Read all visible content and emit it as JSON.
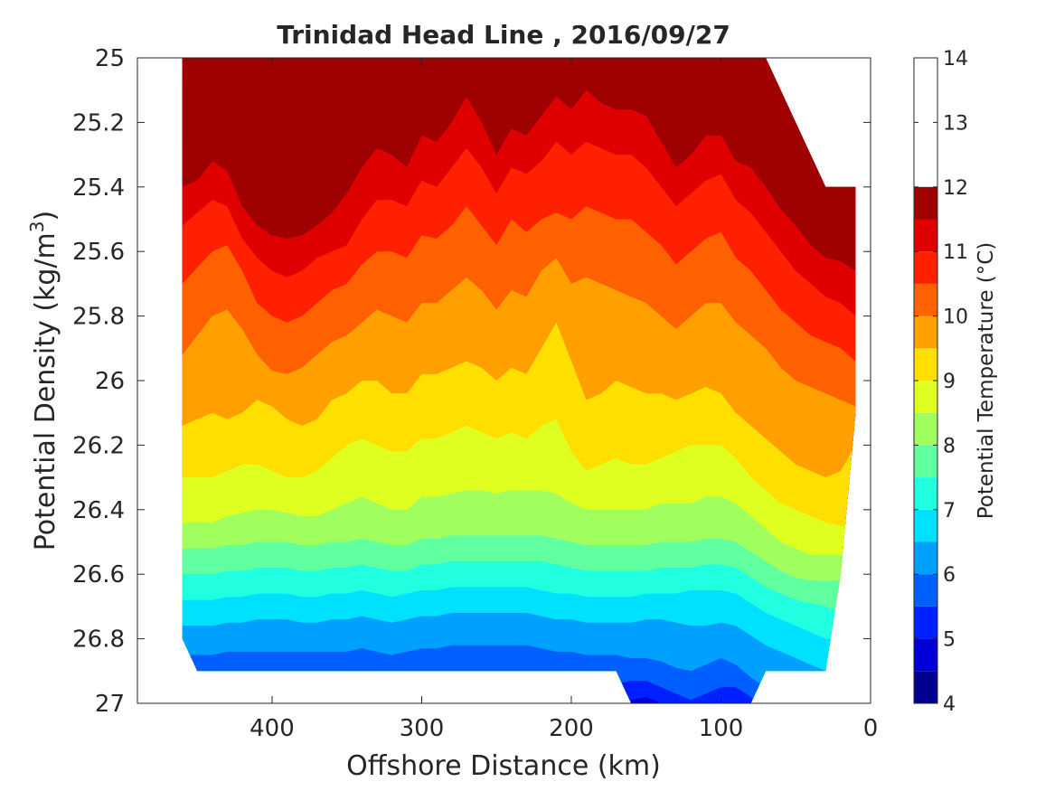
{
  "chart_data": {
    "type": "heatmap",
    "subtype": "filled-contour",
    "title": "Trinidad Head Line , 2016/09/27",
    "xlabel": "Offshore Distance (km)",
    "ylabel_main": "Potential Density (kg/m",
    "ylabel_sup": "3",
    "ylabel_close": ")",
    "colorbar_label": "Potential Temperature (°C)",
    "x_reversed": true,
    "y_reversed": true,
    "xlim": [
      0,
      490
    ],
    "ylim": [
      25,
      27
    ],
    "xticks": [
      400,
      300,
      200,
      100,
      0
    ],
    "xtick_labels": [
      "400",
      "300",
      "200",
      "100",
      "0"
    ],
    "yticks": [
      25,
      25.2,
      25.4,
      25.6,
      25.8,
      26,
      26.2,
      26.4,
      26.6,
      26.8,
      27
    ],
    "ytick_labels": [
      "25",
      "25.2",
      "25.4",
      "25.6",
      "25.8",
      "26",
      "26.2",
      "26.4",
      "26.6",
      "26.8",
      "27"
    ],
    "clim": [
      4,
      14
    ],
    "colorbar_ticks": [
      4,
      5,
      6,
      7,
      8,
      9,
      10,
      11,
      12,
      13,
      14
    ],
    "colorbar_tick_labels": [
      "4",
      "5",
      "6",
      "7",
      "8",
      "9",
      "10",
      "11",
      "12",
      "13",
      "14"
    ],
    "colormap": [
      "#00008f",
      "#0000d6",
      "#0020ff",
      "#0060ff",
      "#00a0ff",
      "#00e0ff",
      "#20ffdf",
      "#60ff9f",
      "#a0ff5f",
      "#dfff20",
      "#ffdf00",
      "#ffa000",
      "#ff6000",
      "#ff2000",
      "#df0000",
      "#9f0000"
    ],
    "level_step": 0.5,
    "grid": false,
    "x": [
      460,
      450,
      440,
      430,
      420,
      410,
      400,
      390,
      380,
      370,
      360,
      350,
      340,
      330,
      320,
      310,
      300,
      290,
      280,
      270,
      260,
      250,
      240,
      230,
      220,
      210,
      200,
      190,
      180,
      170,
      160,
      150,
      140,
      130,
      120,
      110,
      100,
      90,
      80,
      70,
      60,
      50,
      40,
      30,
      20,
      10
    ],
    "data_domain": {
      "top": [
        25,
        25,
        25,
        25,
        25,
        25,
        25,
        25,
        25,
        25,
        25,
        25,
        25,
        25,
        25,
        25,
        25,
        25,
        25,
        25,
        25,
        25,
        25,
        25,
        25,
        25,
        25,
        25,
        25,
        25,
        25,
        25,
        25,
        25,
        25,
        25,
        25,
        25,
        25,
        25,
        25.1,
        25.2,
        25.3,
        25.4,
        25.4,
        25.4
      ],
      "bottom": [
        26.8,
        26.9,
        26.9,
        26.9,
        26.9,
        26.9,
        26.9,
        26.9,
        26.9,
        26.9,
        26.9,
        26.9,
        26.9,
        26.9,
        26.9,
        26.9,
        26.9,
        26.9,
        26.9,
        26.9,
        26.9,
        26.9,
        26.9,
        26.9,
        26.9,
        26.9,
        26.9,
        26.9,
        26.9,
        26.9,
        27,
        27,
        27,
        27,
        27,
        27,
        27,
        27,
        27,
        26.9,
        26.9,
        26.9,
        26.9,
        26.9,
        26.6,
        26.1
      ]
    },
    "isotherm_depths": {
      "levels": [
        13.5,
        13,
        12.5,
        12,
        11.5,
        11,
        10.5,
        10,
        9.5,
        9,
        8.5,
        8,
        7.5,
        7,
        6.5,
        6,
        5.5,
        5,
        4.5
      ],
      "sigma": [
        [
          24.9,
          24.9,
          24.9,
          24.9,
          24.9,
          24.9,
          25.01,
          25.04,
          25.05,
          25.05,
          25.03,
          25.01,
          24.9,
          24.9,
          24.9,
          24.9,
          24.9,
          24.9,
          24.9,
          24.9,
          24.9,
          24.9,
          24.9,
          24.9,
          24.9,
          24.9,
          24.9,
          24.9,
          24.9,
          24.9,
          24.9,
          24.9,
          24.9,
          24.9,
          24.9,
          24.9,
          24.9,
          24.9,
          24.9,
          24.9,
          24.9,
          24.9,
          24.9,
          24.9,
          24.9,
          24.9
        ],
        [
          24.9,
          24.9,
          24.9,
          24.9,
          24.9,
          24.9,
          24.9,
          24.9,
          24.9,
          24.9,
          24.9,
          24.9,
          24.9,
          24.9,
          24.9,
          24.9,
          24.9,
          24.9,
          24.9,
          24.9,
          24.9,
          24.9,
          24.9,
          24.9,
          24.9,
          24.9,
          24.9,
          24.9,
          24.9,
          24.9,
          24.9,
          24.9,
          24.9,
          24.9,
          24.9,
          24.9,
          24.9,
          24.9,
          24.9,
          25.1,
          25.2,
          25.3,
          25.4,
          25.42,
          25.42,
          25.42
        ],
        [
          25.08,
          25.05,
          25.0,
          25.05,
          25.12,
          25.2,
          25.25,
          25.28,
          25.28,
          25.26,
          25.2,
          25.12,
          25.05,
          25.0,
          25.02,
          25.04,
          24.9,
          25.04,
          25.02,
          24.9,
          25.0,
          25.05,
          24.9,
          25.04,
          24.9,
          24.9,
          24.9,
          24.9,
          24.9,
          24.9,
          24.9,
          24.9,
          25.02,
          25.07,
          25.05,
          25.02,
          25.04,
          25.08,
          25.0,
          25.06,
          25.2,
          25.3,
          25.4,
          25.42,
          25.42,
          25.42
        ],
        [
          25.25,
          25.22,
          25.14,
          25.2,
          25.3,
          25.38,
          25.41,
          25.44,
          25.43,
          25.4,
          25.36,
          25.3,
          25.22,
          25.16,
          25.18,
          25.2,
          25.1,
          25.14,
          25.08,
          25.0,
          25.08,
          25.16,
          25.1,
          25.12,
          25.04,
          25.0,
          25.04,
          24.9,
          25.02,
          25.0,
          25.02,
          25.04,
          25.12,
          25.2,
          25.18,
          25.12,
          25.12,
          25.18,
          25.2,
          25.26,
          25.34,
          25.4,
          25.46,
          25.5,
          25.52,
          25.55
        ],
        [
          25.4,
          25.38,
          25.32,
          25.35,
          25.46,
          25.52,
          25.55,
          25.56,
          25.55,
          25.52,
          25.48,
          25.42,
          25.34,
          25.28,
          25.3,
          25.34,
          25.24,
          25.26,
          25.2,
          25.12,
          25.2,
          25.3,
          25.22,
          25.24,
          25.18,
          25.12,
          25.16,
          25.1,
          25.14,
          25.16,
          25.16,
          25.18,
          25.26,
          25.34,
          25.3,
          25.24,
          25.24,
          25.32,
          25.34,
          25.4,
          25.47,
          25.52,
          25.58,
          25.62,
          25.63,
          25.66
        ],
        [
          25.52,
          25.48,
          25.44,
          25.46,
          25.56,
          25.62,
          25.66,
          25.68,
          25.66,
          25.62,
          25.6,
          25.58,
          25.5,
          25.44,
          25.44,
          25.46,
          25.38,
          25.4,
          25.34,
          25.28,
          25.34,
          25.42,
          25.34,
          25.36,
          25.32,
          25.26,
          25.3,
          25.26,
          25.28,
          25.3,
          25.3,
          25.34,
          25.4,
          25.46,
          25.42,
          25.38,
          25.36,
          25.44,
          25.48,
          25.54,
          25.6,
          25.66,
          25.7,
          25.74,
          25.76,
          25.8
        ],
        [
          25.7,
          25.65,
          25.6,
          25.58,
          25.66,
          25.76,
          25.8,
          25.82,
          25.8,
          25.76,
          25.72,
          25.7,
          25.64,
          25.6,
          25.6,
          25.62,
          25.55,
          25.56,
          25.52,
          25.46,
          25.52,
          25.58,
          25.5,
          25.54,
          25.5,
          25.48,
          25.5,
          25.46,
          25.48,
          25.5,
          25.5,
          25.54,
          25.58,
          25.64,
          25.6,
          25.56,
          25.54,
          25.62,
          25.66,
          25.72,
          25.78,
          25.82,
          25.86,
          25.88,
          25.9,
          25.94
        ],
        [
          25.92,
          25.86,
          25.8,
          25.78,
          25.84,
          25.92,
          25.97,
          25.98,
          25.96,
          25.92,
          25.88,
          25.86,
          25.82,
          25.78,
          25.8,
          25.82,
          25.76,
          25.76,
          25.72,
          25.68,
          25.72,
          25.78,
          25.72,
          25.74,
          25.66,
          25.62,
          25.7,
          25.68,
          25.7,
          25.72,
          25.74,
          25.76,
          25.8,
          25.84,
          25.8,
          25.76,
          25.76,
          25.82,
          25.86,
          25.9,
          25.96,
          26.0,
          26.02,
          26.04,
          26.06,
          26.08
        ],
        [
          26.14,
          26.12,
          26.1,
          26.12,
          26.1,
          26.06,
          26.08,
          26.12,
          26.14,
          26.12,
          26.06,
          26.04,
          26.0,
          26.0,
          26.04,
          26.04,
          25.98,
          25.98,
          25.96,
          25.94,
          25.96,
          26.0,
          25.96,
          25.98,
          25.9,
          25.82,
          25.94,
          26.06,
          26.04,
          26.0,
          26.02,
          26.04,
          26.04,
          26.06,
          26.04,
          26.02,
          26.04,
          26.1,
          26.14,
          26.18,
          26.22,
          26.26,
          26.28,
          26.3,
          26.28,
          26.2
        ],
        [
          26.3,
          26.3,
          26.3,
          26.28,
          26.26,
          26.26,
          26.28,
          26.3,
          26.3,
          26.28,
          26.24,
          26.2,
          26.18,
          26.2,
          26.22,
          26.22,
          26.18,
          26.18,
          26.16,
          26.14,
          26.16,
          26.18,
          26.16,
          26.18,
          26.14,
          26.12,
          26.22,
          26.28,
          26.26,
          26.24,
          26.26,
          26.26,
          26.24,
          26.22,
          26.2,
          26.2,
          26.2,
          26.24,
          26.3,
          26.34,
          26.38,
          26.4,
          26.42,
          26.44,
          26.45,
          26.45
        ],
        [
          26.44,
          26.44,
          26.44,
          26.42,
          26.41,
          26.4,
          26.4,
          26.41,
          26.42,
          26.42,
          26.4,
          26.38,
          26.36,
          26.38,
          26.4,
          26.4,
          26.36,
          26.36,
          26.35,
          26.34,
          26.34,
          26.35,
          26.34,
          26.34,
          26.34,
          26.35,
          26.38,
          26.4,
          26.4,
          26.4,
          26.4,
          26.4,
          26.38,
          26.38,
          26.38,
          26.36,
          26.36,
          26.38,
          26.42,
          26.46,
          26.5,
          26.52,
          26.54,
          26.54,
          26.54,
          26.54
        ],
        [
          26.52,
          26.52,
          26.52,
          26.51,
          26.51,
          26.5,
          26.5,
          26.5,
          26.51,
          26.51,
          26.5,
          26.5,
          26.49,
          26.5,
          26.51,
          26.51,
          26.49,
          26.49,
          26.48,
          26.48,
          26.48,
          26.48,
          26.48,
          26.48,
          26.48,
          26.49,
          26.5,
          26.51,
          26.51,
          26.51,
          26.51,
          26.51,
          26.5,
          26.5,
          26.5,
          26.49,
          26.49,
          26.5,
          26.53,
          26.56,
          26.59,
          26.61,
          26.62,
          26.62,
          26.62,
          26.62
        ],
        [
          26.6,
          26.6,
          26.6,
          26.59,
          26.59,
          26.58,
          26.58,
          26.58,
          26.59,
          26.59,
          26.58,
          26.58,
          26.57,
          26.58,
          26.59,
          26.59,
          26.57,
          26.57,
          26.56,
          26.56,
          26.56,
          26.56,
          26.56,
          26.56,
          26.56,
          26.57,
          26.58,
          26.59,
          26.59,
          26.59,
          26.59,
          26.59,
          26.58,
          26.58,
          26.58,
          26.57,
          26.57,
          26.58,
          26.61,
          26.64,
          26.66,
          26.68,
          26.69,
          26.7,
          26.72,
          26.72
        ],
        [
          26.68,
          26.68,
          26.68,
          26.67,
          26.67,
          26.66,
          26.66,
          26.66,
          26.67,
          26.67,
          26.66,
          26.66,
          26.65,
          26.66,
          26.67,
          26.66,
          26.65,
          26.65,
          26.64,
          26.64,
          26.64,
          26.64,
          26.64,
          26.64,
          26.65,
          26.66,
          26.66,
          26.67,
          26.67,
          26.67,
          26.67,
          26.66,
          26.66,
          26.66,
          26.65,
          26.65,
          26.65,
          26.66,
          26.69,
          26.72,
          26.74,
          26.76,
          26.78,
          26.8,
          26.8,
          26.8
        ],
        [
          26.76,
          26.76,
          26.76,
          26.75,
          26.75,
          26.74,
          26.74,
          26.74,
          26.75,
          26.75,
          26.74,
          26.74,
          26.73,
          26.74,
          26.75,
          26.74,
          26.73,
          26.73,
          26.72,
          26.72,
          26.72,
          26.72,
          26.72,
          26.72,
          26.73,
          26.74,
          26.74,
          26.75,
          26.75,
          26.75,
          26.75,
          26.74,
          26.74,
          26.75,
          26.76,
          26.76,
          26.75,
          26.76,
          26.79,
          26.82,
          26.84,
          26.86,
          26.88,
          26.9,
          26.9,
          26.9
        ],
        [
          26.85,
          26.85,
          26.85,
          26.84,
          26.84,
          26.84,
          26.84,
          26.84,
          26.84,
          26.84,
          26.84,
          26.84,
          26.83,
          26.84,
          26.85,
          26.84,
          26.83,
          26.83,
          26.82,
          26.82,
          26.82,
          26.82,
          26.82,
          26.82,
          26.83,
          26.84,
          26.84,
          26.85,
          26.85,
          26.85,
          26.86,
          26.86,
          26.87,
          26.89,
          26.9,
          26.88,
          26.86,
          26.88,
          26.92,
          26.95,
          26.97,
          27.0,
          27.0,
          27.0,
          27.0,
          27.0
        ],
        [
          27.05,
          27.05,
          27.05,
          27.05,
          27.05,
          27.05,
          27.05,
          27.05,
          27.05,
          27.05,
          27.05,
          27.05,
          27.05,
          27.05,
          27.05,
          27.05,
          27.05,
          27.05,
          27.05,
          27.05,
          27.05,
          27.05,
          27.05,
          27.05,
          27.05,
          27.05,
          27.05,
          27.05,
          26.96,
          26.94,
          26.93,
          26.93,
          26.95,
          26.97,
          26.99,
          26.97,
          26.95,
          26.95,
          26.98,
          27.05,
          27.05,
          27.05,
          27.05,
          27.05,
          27.05,
          27.05
        ],
        [
          27.05,
          27.05,
          27.05,
          27.05,
          27.05,
          27.05,
          27.05,
          27.05,
          27.05,
          27.05,
          27.05,
          27.05,
          27.05,
          27.05,
          27.05,
          27.05,
          27.05,
          27.05,
          27.05,
          27.05,
          27.05,
          27.05,
          27.05,
          27.05,
          27.05,
          27.05,
          27.05,
          27.05,
          27.05,
          27.05,
          26.99,
          26.98,
          27.0,
          27.05,
          27.05,
          27.05,
          27.05,
          27.05,
          27.05,
          27.05,
          27.05,
          27.05,
          27.05,
          27.05,
          27.05,
          27.05
        ],
        [
          27.05,
          27.05,
          27.05,
          27.05,
          27.05,
          27.05,
          27.05,
          27.05,
          27.05,
          27.05,
          27.05,
          27.05,
          27.05,
          27.05,
          27.05,
          27.05,
          27.05,
          27.05,
          27.05,
          27.05,
          27.05,
          27.05,
          27.05,
          27.05,
          27.05,
          27.05,
          27.05,
          27.05,
          27.05,
          27.05,
          27.05,
          27.05,
          27.05,
          27.05,
          27.05,
          27.05,
          27.05,
          27.05,
          27.05,
          27.05,
          27.05,
          27.05,
          27.05,
          27.05,
          27.05,
          27.05
        ]
      ]
    }
  }
}
